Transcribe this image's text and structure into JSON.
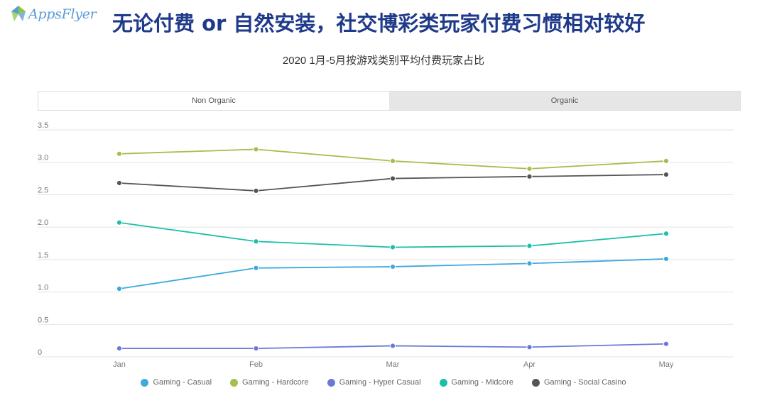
{
  "header": {
    "logo_text": "AppsFlyer",
    "headline": "无论付费 or 自然安装，社交博彩类玩家付费习惯相对较好"
  },
  "tabs": [
    {
      "label": "Non Organic",
      "active": true
    },
    {
      "label": "Organic",
      "active": false
    }
  ],
  "colors": {
    "logo_green": "#8cc63f",
    "logo_blue": "#5b9bd5",
    "headline": "#1f3a8a"
  },
  "chart_data": {
    "type": "line",
    "title": "2020 1月-5月按游戏类别平均付费玩家占比",
    "xlabel": "",
    "ylabel": "",
    "categories": [
      "Jan",
      "Feb",
      "Mar",
      "Apr",
      "May"
    ],
    "yticks": [
      "0",
      "0.5",
      "1.0",
      "1.5",
      "2.0",
      "2.5",
      "3.0",
      "3.5"
    ],
    "ylim": [
      0,
      3.5
    ],
    "grid": true,
    "legend_position": "bottom",
    "series": [
      {
        "name": "Gaming - Casual",
        "color": "#3fa9dc",
        "values": [
          1.05,
          1.37,
          1.39,
          1.44,
          1.51
        ]
      },
      {
        "name": "Gaming - Hardcore",
        "color": "#a4bf4e",
        "values": [
          3.13,
          3.2,
          3.02,
          2.9,
          3.02
        ]
      },
      {
        "name": "Gaming - Hyper Casual",
        "color": "#6a79d6",
        "values": [
          0.13,
          0.13,
          0.17,
          0.15,
          0.2
        ]
      },
      {
        "name": "Gaming - Midcore",
        "color": "#1bbfa8",
        "values": [
          2.07,
          1.78,
          1.69,
          1.71,
          1.9
        ]
      },
      {
        "name": "Gaming - Social Casino",
        "color": "#555555",
        "values": [
          2.68,
          2.56,
          2.75,
          2.78,
          2.81
        ]
      }
    ]
  }
}
